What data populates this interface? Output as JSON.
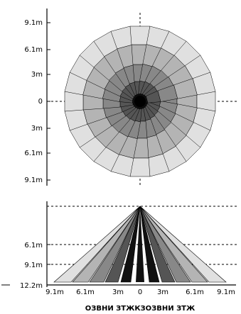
{
  "top_view": {
    "y_axis_labels": [
      "9.1m",
      "6.1m",
      "3m",
      "0",
      "3m",
      "6.1m",
      "9.1m"
    ],
    "center_label": "0",
    "rays": 24
  },
  "side_view": {
    "y_axis_labels": [
      "6.1m",
      "9.1m",
      "12.2m"
    ],
    "x_axis_labels": [
      "9.1m",
      "6.1m",
      "3m",
      "0",
      "3m",
      "6.1m",
      "9.1m"
    ],
    "caption": "ОЗВНИ ЗТЖКЗОЗВНИ ЗТЖ"
  },
  "colors": {
    "level_1": "#111111",
    "level_2": "#555555",
    "level_3": "#888888",
    "level_4": "#b4b4b4",
    "level_5": "#e0e0e0",
    "outline": "#000000",
    "axis": "#000000",
    "grid_dash": "#000000"
  }
}
